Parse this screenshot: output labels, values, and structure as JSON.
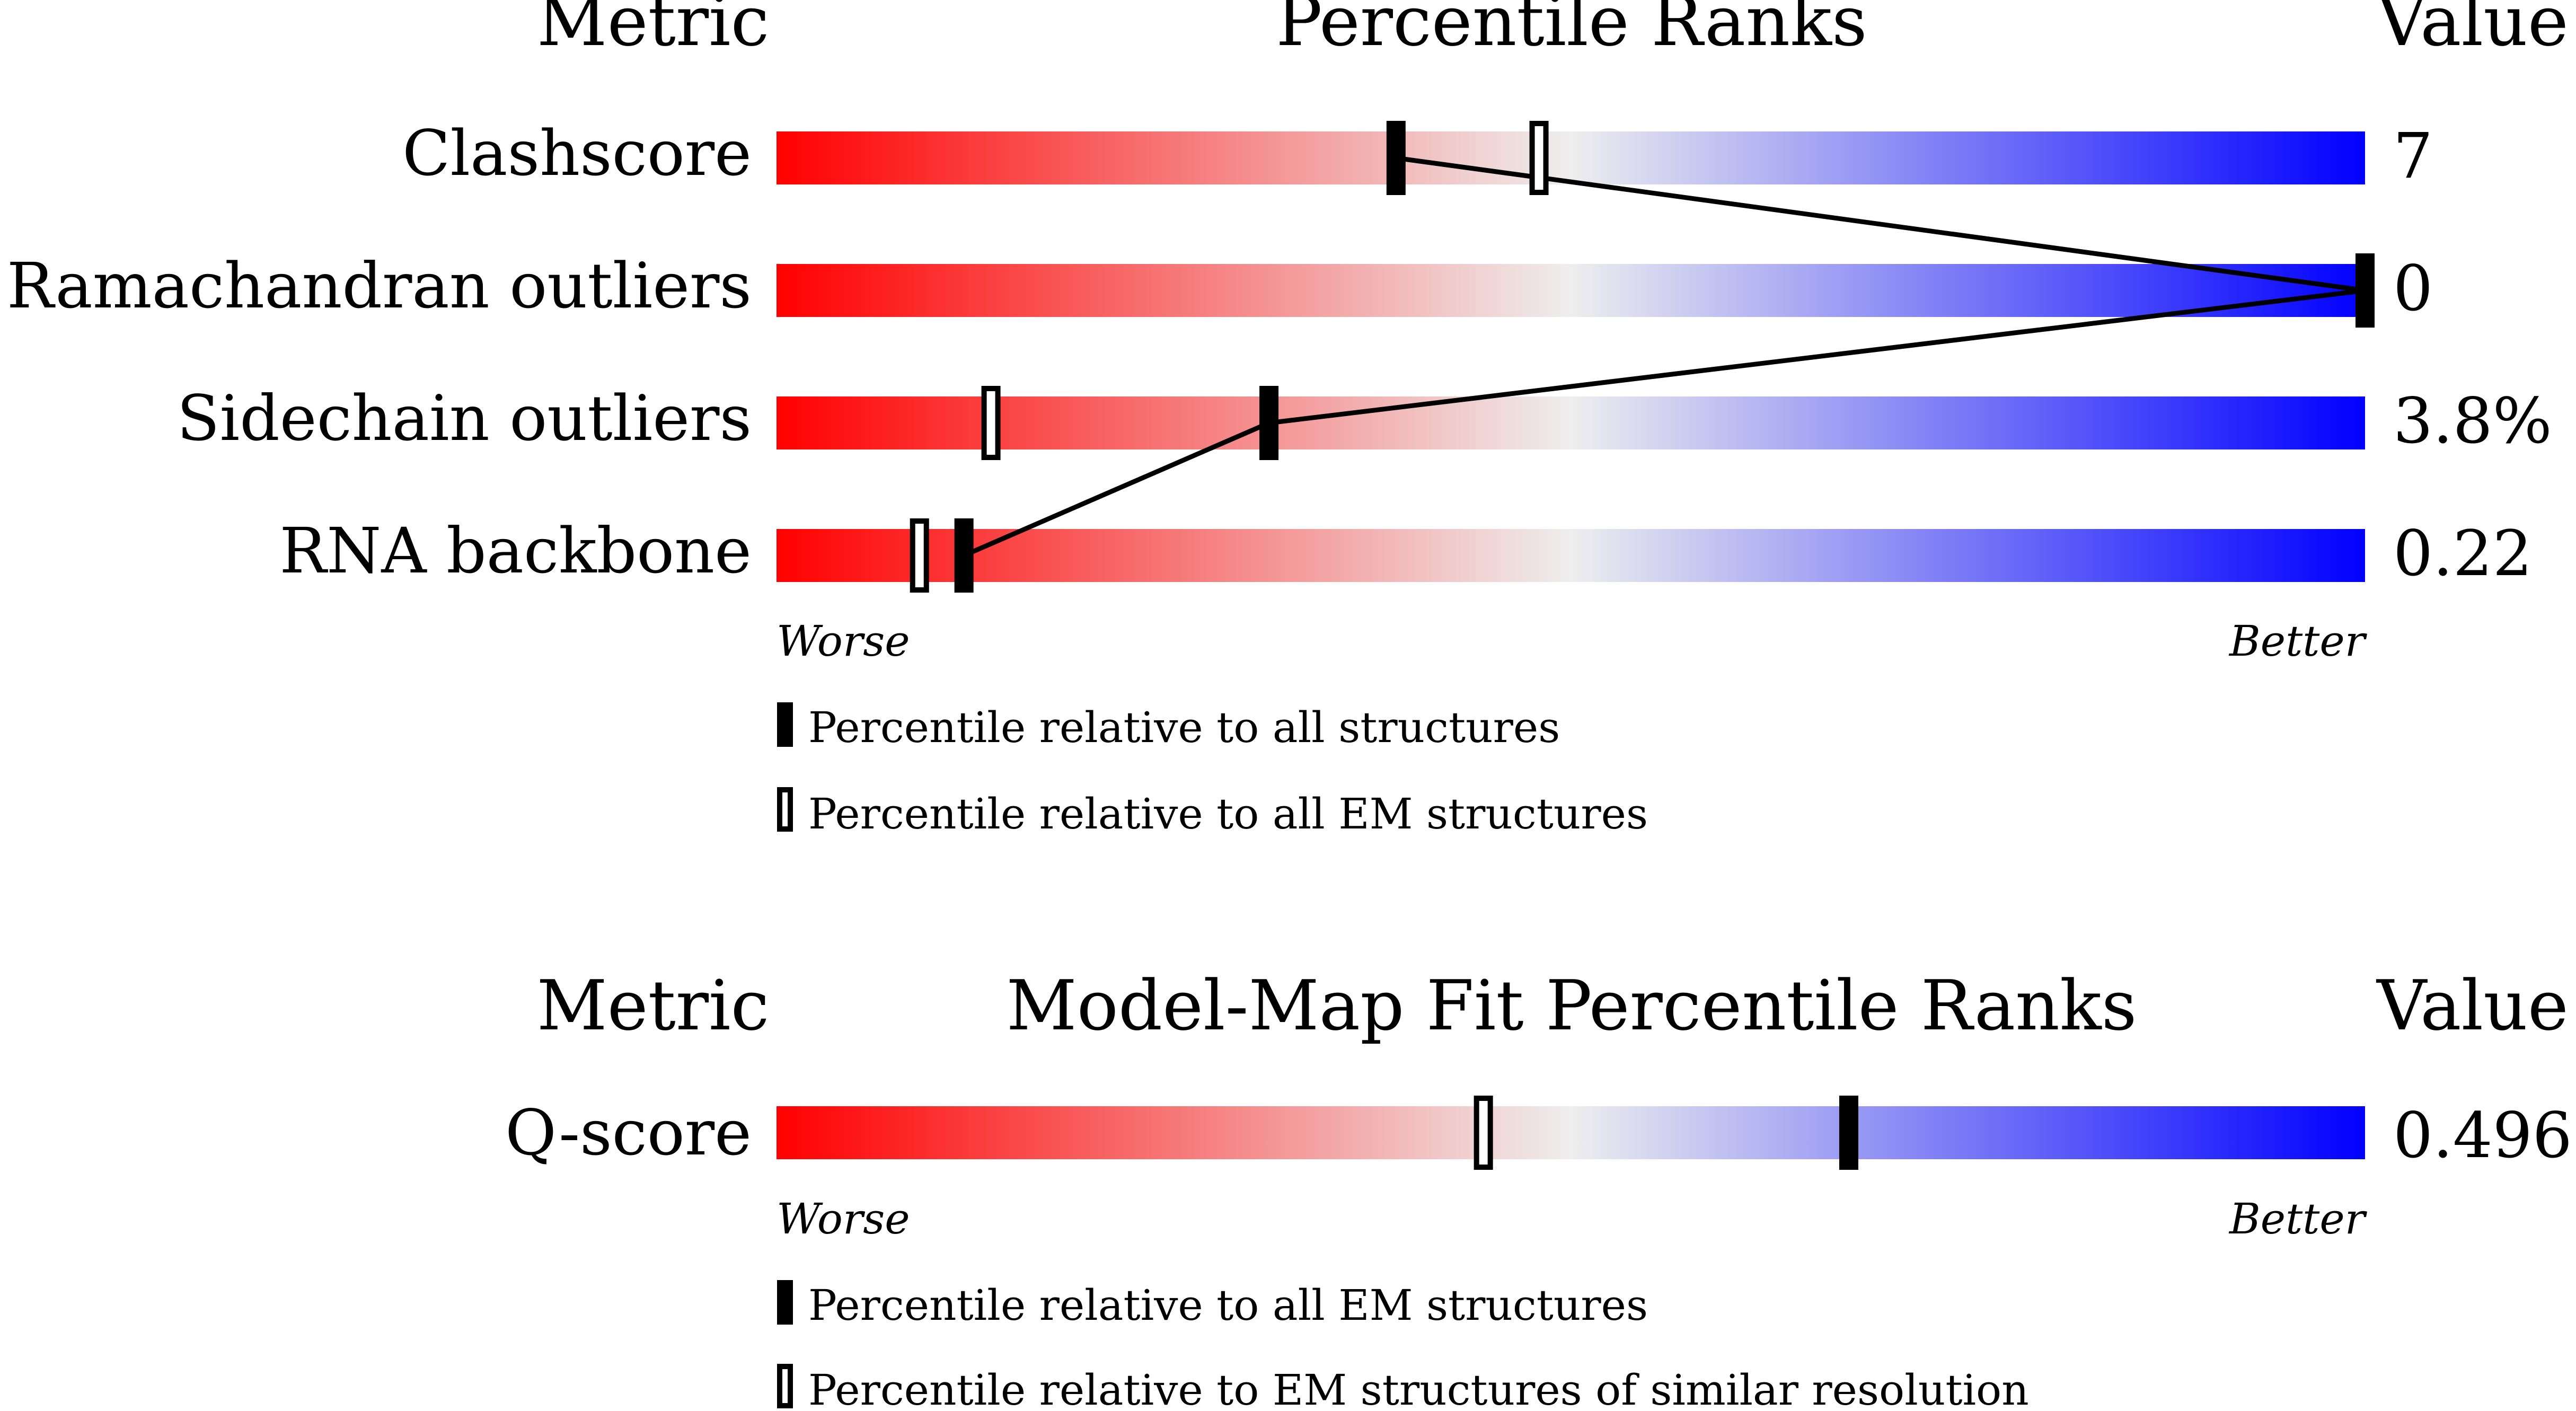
{
  "chart_data": [
    {
      "type": "bar",
      "header": {
        "metric": "Metric",
        "title": "Percentile Ranks",
        "value": "Value"
      },
      "rows": [
        {
          "metric": "Clashscore",
          "value": "7",
          "percentile_all": 39,
          "percentile_em": 48
        },
        {
          "metric": "Ramachandran outliers",
          "value": "0",
          "percentile_all": 100
        },
        {
          "metric": "Sidechain outliers",
          "value": "3.8%",
          "percentile_all": 31,
          "percentile_em": 13.5
        },
        {
          "metric": "RNA backbone",
          "value": "0.22",
          "percentile_all": 11.8,
          "percentile_em": 9
        }
      ],
      "scale": {
        "worse": "Worse",
        "better": "Better",
        "range": [
          0,
          100
        ]
      },
      "legend": {
        "filled": "Percentile relative to all structures",
        "open": "Percentile relative to all EM structures"
      },
      "colors": {
        "worse": "#ff0000",
        "middle": "#eeeeee",
        "better": "#0000ff"
      }
    },
    {
      "type": "bar",
      "header": {
        "metric": "Metric",
        "title": "Model-Map Fit Percentile Ranks",
        "value": "Value"
      },
      "rows": [
        {
          "metric": "Q-score",
          "value": "0.496",
          "percentile_all": 67.5,
          "percentile_em": 44.5
        }
      ],
      "scale": {
        "worse": "Worse",
        "better": "Better",
        "range": [
          0,
          100
        ]
      },
      "legend": {
        "filled": "Percentile relative to all EM structures",
        "open": "Percentile relative to EM structures of similar resolution"
      },
      "colors": {
        "worse": "#ff0000",
        "middle": "#eeeeee",
        "better": "#0000ff"
      }
    }
  ]
}
